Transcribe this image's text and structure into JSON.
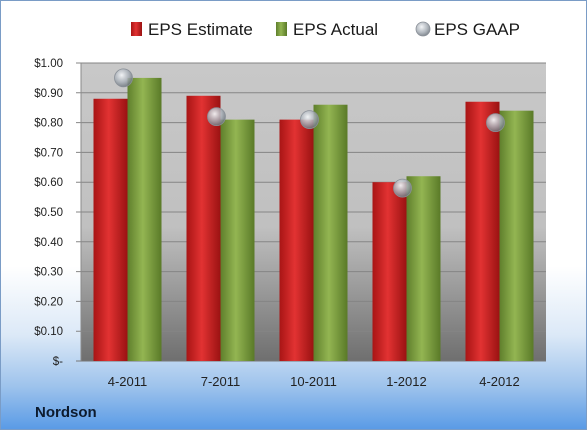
{
  "company": "Nordson",
  "chart_data": {
    "type": "bar",
    "categories": [
      "4-2011",
      "7-2011",
      "10-2011",
      "1-2012",
      "4-2012"
    ],
    "series": [
      {
        "name": "EPS Estimate",
        "color": "#d42a2a",
        "values": [
          0.88,
          0.89,
          0.81,
          0.6,
          0.87
        ]
      },
      {
        "name": "EPS Actual",
        "color": "#86aa4a",
        "values": [
          0.95,
          0.81,
          0.86,
          0.62,
          0.84
        ]
      },
      {
        "name": "EPS GAAP",
        "color": "#9aa3ad",
        "marker": "circle",
        "values": [
          0.95,
          0.82,
          0.81,
          0.58,
          0.8
        ]
      }
    ],
    "yticks": [
      "$1.00",
      "$0.90",
      "$0.80",
      "$0.70",
      "$0.60",
      "$0.50",
      "$0.40",
      "$0.30",
      "$0.20",
      "$0.10",
      "$-"
    ],
    "ylim": [
      0,
      1.0
    ],
    "grid": true,
    "legend": "top"
  }
}
